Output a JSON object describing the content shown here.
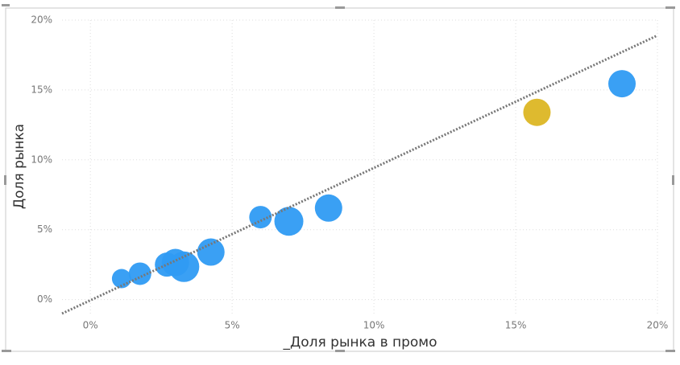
{
  "chart_data": {
    "type": "scatter",
    "x_label": "_Доля рынка в промо",
    "y_label": "Доля рынка",
    "x": [
      1.1,
      1.75,
      2.7,
      3.0,
      3.3,
      4.25,
      6.0,
      7.0,
      8.4,
      15.75,
      18.75
    ],
    "y": [
      1.5,
      1.85,
      2.5,
      2.65,
      2.35,
      3.4,
      5.9,
      5.6,
      6.55,
      13.4,
      15.45
    ],
    "sizes": [
      12,
      14,
      15,
      17,
      19,
      17,
      14,
      18,
      17,
      17,
      17
    ],
    "colors": [
      "#2f9bf3",
      "#2f9bf3",
      "#2f9bf3",
      "#2f9bf3",
      "#2f9bf3",
      "#2f9bf3",
      "#2f9bf3",
      "#2f9bf3",
      "#2f9bf3",
      "#dcb624",
      "#2f9bf3"
    ],
    "trendline": {
      "color": "#777777",
      "x": [
        -1,
        20
      ],
      "y": [
        -1,
        18.9
      ]
    },
    "xlim": [
      -1,
      20
    ],
    "ylim": [
      -1,
      20
    ],
    "xticks": [
      {
        "value": 0,
        "label": "0%"
      },
      {
        "value": 5,
        "label": "5%"
      },
      {
        "value": 10,
        "label": "10%"
      },
      {
        "value": 15,
        "label": "15%"
      },
      {
        "value": 20,
        "label": "20%"
      }
    ],
    "yticks": [
      {
        "value": 0,
        "label": "0%"
      },
      {
        "value": 5,
        "label": "5%"
      },
      {
        "value": 10,
        "label": "10%"
      },
      {
        "value": 15,
        "label": "15%"
      },
      {
        "value": 20,
        "label": "20%"
      }
    ],
    "grid": true
  }
}
